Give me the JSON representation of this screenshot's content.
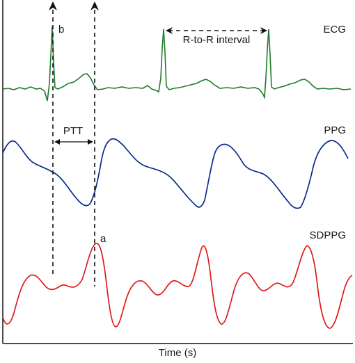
{
  "x_axis_label": "Time (s)",
  "signals": {
    "ecg": {
      "label": "ECG",
      "color": "#1e7a2a"
    },
    "ppg": {
      "label": "PPG",
      "color": "#0a2a8c"
    },
    "sdppg": {
      "label": "SDPPG",
      "color": "#e01a1a"
    }
  },
  "annotations": {
    "b": "b",
    "a": "a",
    "ptt": "PTT",
    "rr_interval": "R-to-R interval"
  }
}
